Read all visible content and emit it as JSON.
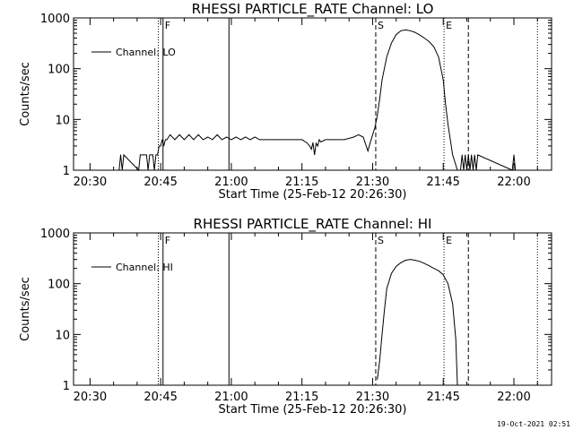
{
  "footer": {
    "timestamp": "19-Oct-2021 02:51"
  },
  "chart_data": [
    {
      "type": "line",
      "title": "RHESSI PARTICLE_RATE Channel: LO",
      "xlabel": "Start Time (25-Feb-12 20:26:30)",
      "ylabel": "Counts/sec",
      "yscale": "log",
      "xlim": [
        "20:26:30",
        "22:08:00"
      ],
      "ylim": [
        1,
        1000
      ],
      "xticks": [
        "20:30",
        "20:45",
        "21:00",
        "21:15",
        "21:30",
        "21:45",
        "22:00"
      ],
      "yticks": [
        "1",
        "10",
        "100",
        "1000"
      ],
      "legend": {
        "placement": "top-left",
        "entries": [
          "Channel: LO"
        ]
      },
      "grid": false,
      "markers": [
        {
          "label": "F",
          "time": "20:45:30",
          "style": "solid"
        },
        {
          "label": "",
          "time": "20:59:30",
          "style": "solid"
        },
        {
          "label": "",
          "time": "20:44:30",
          "style": "dotted"
        },
        {
          "label": "S",
          "time": "21:30:40",
          "style": "dashed"
        },
        {
          "label": "E",
          "time": "21:45:10",
          "style": "dotted"
        },
        {
          "label": "",
          "time": "21:50:20",
          "style": "dashed"
        },
        {
          "label": "",
          "time": "22:05:00",
          "style": "dotted"
        }
      ],
      "series": [
        {
          "name": "Channel: LO",
          "x": [
            "20:36:10",
            "20:36:30",
            "20:36:50",
            "20:37:10",
            "20:40:20",
            "20:40:40",
            "20:41:20",
            "20:42:00",
            "20:42:20",
            "20:42:40",
            "20:43:00",
            "20:43:20",
            "20:43:40",
            "20:44:00",
            "20:44:20",
            "20:44:40",
            "20:45:00",
            "20:45:20",
            "20:45:40",
            "20:46:00",
            "20:46:20",
            "20:47:00",
            "20:48:00",
            "20:49:00",
            "20:50:00",
            "20:51:00",
            "20:52:00",
            "20:53:00",
            "20:54:00",
            "20:55:00",
            "20:56:00",
            "20:57:00",
            "20:58:00",
            "20:59:00",
            "21:00:00",
            "21:01:00",
            "21:02:00",
            "21:03:00",
            "21:04:00",
            "21:05:00",
            "21:06:00",
            "21:08:00",
            "21:10:00",
            "21:12:00",
            "21:14:00",
            "21:15:00",
            "21:16:00",
            "21:16:40",
            "21:17:00",
            "21:17:20",
            "21:17:40",
            "21:18:00",
            "21:18:20",
            "21:18:40",
            "21:19:00",
            "21:20:00",
            "21:22:00",
            "21:24:00",
            "21:26:00",
            "21:27:00",
            "21:28:00",
            "21:29:00",
            "21:29:30",
            "21:30:00",
            "21:30:30",
            "21:31:00",
            "21:31:30",
            "21:32:00",
            "21:33:00",
            "21:34:00",
            "21:35:00",
            "21:36:00",
            "21:37:00",
            "21:38:00",
            "21:39:00",
            "21:40:00",
            "21:41:00",
            "21:42:00",
            "21:43:00",
            "21:44:00",
            "21:45:00",
            "21:45:30",
            "21:46:00",
            "21:47:00",
            "21:48:00",
            "21:48:40",
            "21:49:00",
            "21:49:20",
            "21:49:40",
            "21:50:00",
            "21:50:20",
            "21:50:40",
            "21:51:00",
            "21:51:20",
            "21:51:40",
            "21:52:00",
            "21:52:20",
            "21:59:40",
            "22:00:00",
            "22:00:20"
          ],
          "y": [
            1,
            2,
            1,
            2,
            1,
            2,
            2,
            2,
            1,
            2,
            2,
            2,
            1,
            2,
            2,
            3,
            3,
            4,
            3,
            4,
            4,
            5,
            4,
            5,
            4,
            5,
            4,
            5,
            4,
            4.5,
            4,
            5,
            4,
            4.5,
            4,
            4.5,
            4,
            4.5,
            4,
            4.5,
            4,
            4,
            4,
            4,
            4,
            4,
            3.5,
            3,
            2.6,
            3.5,
            2,
            3.4,
            3,
            4,
            3.6,
            4,
            4,
            4,
            4.5,
            5,
            4.5,
            2.4,
            3.5,
            5,
            7,
            12,
            25,
            60,
            170,
            320,
            470,
            560,
            580,
            560,
            520,
            460,
            400,
            340,
            270,
            170,
            60,
            20,
            8,
            2,
            1,
            1,
            2,
            1,
            2,
            1,
            2,
            1,
            2,
            1,
            2,
            1,
            2,
            1,
            2,
            1
          ]
        }
      ]
    },
    {
      "type": "line",
      "title": "RHESSI PARTICLE_RATE Channel: HI",
      "xlabel": "Start Time (25-Feb-12 20:26:30)",
      "ylabel": "Counts/sec",
      "yscale": "log",
      "xlim": [
        "20:26:30",
        "22:08:00"
      ],
      "ylim": [
        1,
        1000
      ],
      "xticks": [
        "20:30",
        "20:45",
        "21:00",
        "21:15",
        "21:30",
        "21:45",
        "22:00"
      ],
      "yticks": [
        "1",
        "10",
        "100",
        "1000"
      ],
      "legend": {
        "placement": "top-left",
        "entries": [
          "Channel: HI"
        ]
      },
      "grid": false,
      "markers": [
        {
          "label": "F",
          "time": "20:45:30",
          "style": "solid"
        },
        {
          "label": "",
          "time": "20:59:30",
          "style": "solid"
        },
        {
          "label": "",
          "time": "20:44:30",
          "style": "dotted"
        },
        {
          "label": "S",
          "time": "21:30:40",
          "style": "dashed"
        },
        {
          "label": "E",
          "time": "21:45:10",
          "style": "dotted"
        },
        {
          "label": "",
          "time": "21:50:20",
          "style": "dashed"
        },
        {
          "label": "",
          "time": "22:05:00",
          "style": "dotted"
        }
      ],
      "series": [
        {
          "name": "Channel: HI",
          "x": [
            "21:31:00",
            "21:31:30",
            "21:32:00",
            "21:32:30",
            "21:33:00",
            "21:34:00",
            "21:35:00",
            "21:36:00",
            "21:37:00",
            "21:38:00",
            "21:39:00",
            "21:40:00",
            "21:41:00",
            "21:42:00",
            "21:43:00",
            "21:44:00",
            "21:45:00",
            "21:46:00",
            "21:47:00",
            "21:47:40",
            "21:48:00"
          ],
          "y": [
            1.3,
            3,
            10,
            30,
            80,
            160,
            220,
            260,
            290,
            300,
            290,
            275,
            250,
            225,
            200,
            180,
            150,
            100,
            40,
            8,
            1
          ]
        }
      ]
    }
  ]
}
